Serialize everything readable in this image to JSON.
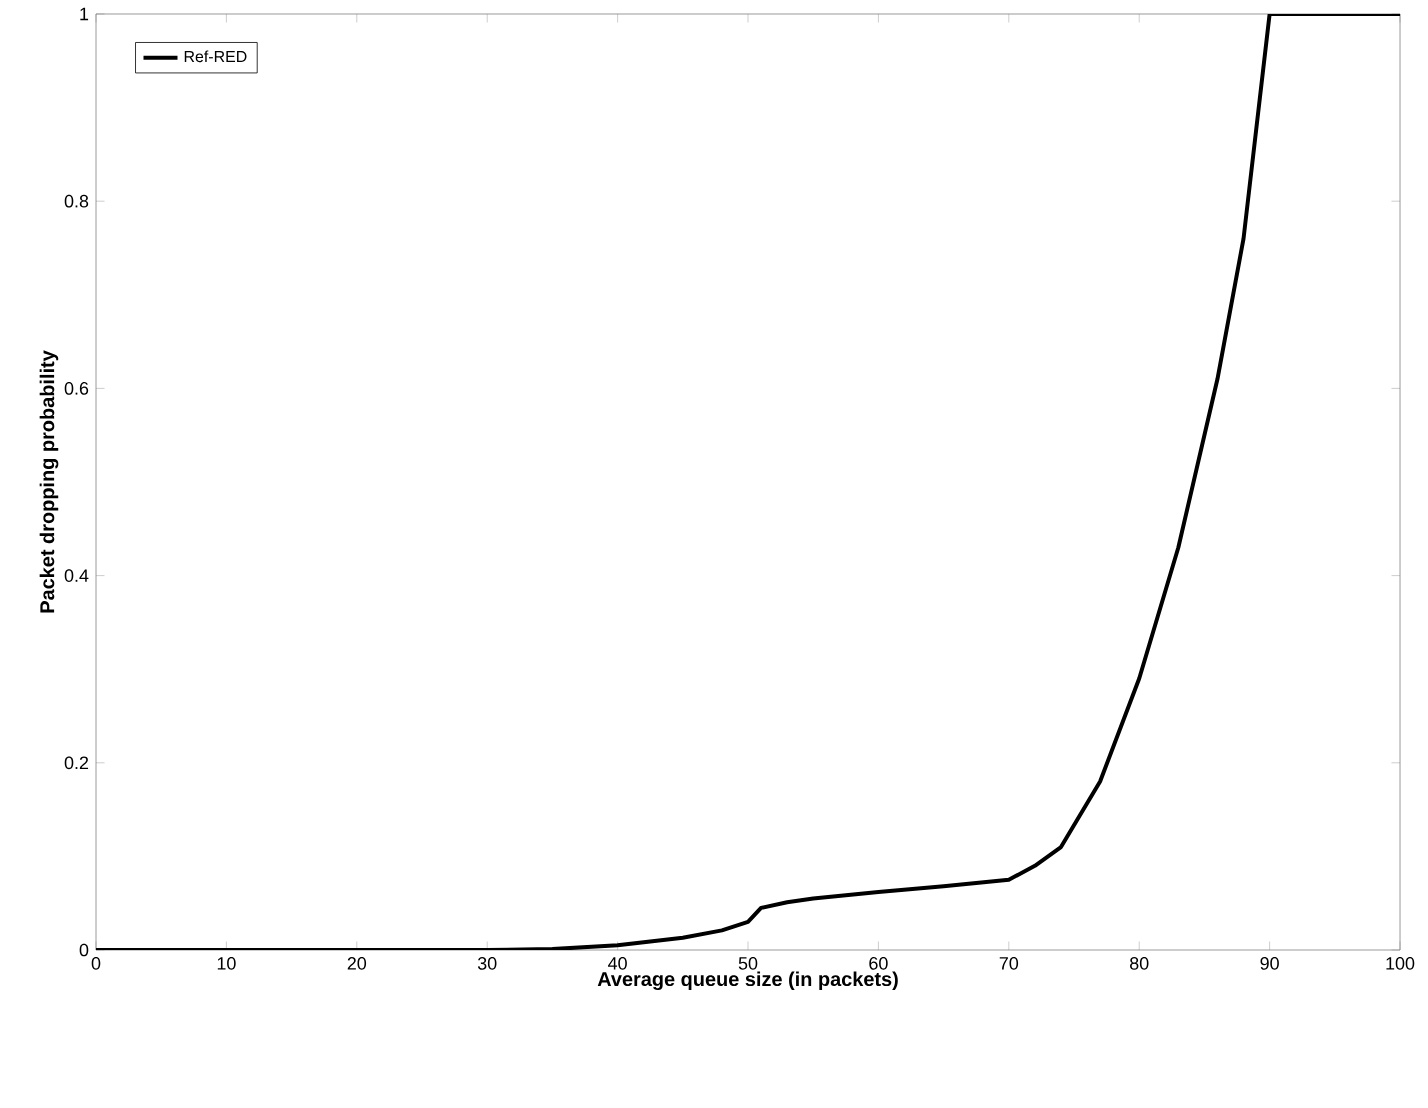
{
  "chart_data": {
    "type": "line",
    "xlabel": "Average queue size (in packets)",
    "ylabel": "Packet dropping probability",
    "xlim": [
      0,
      100
    ],
    "ylim": [
      0,
      1
    ],
    "xticks": [
      0,
      10,
      20,
      30,
      40,
      50,
      60,
      70,
      80,
      90,
      100
    ],
    "yticks": [
      0,
      0.2,
      0.4,
      0.6,
      0.8,
      1
    ],
    "x": [
      0,
      10,
      20,
      30,
      35,
      40,
      45,
      48,
      50,
      51,
      53,
      55,
      60,
      65,
      70,
      72,
      74,
      77,
      80,
      83,
      86,
      88,
      90,
      95,
      100
    ],
    "series": [
      {
        "name": "Ref-RED",
        "color": "#000000",
        "values": [
          0,
          0,
          0,
          0,
          0.001,
          0.005,
          0.013,
          0.021,
          0.03,
          0.045,
          0.051,
          0.055,
          0.062,
          0.068,
          0.075,
          0.09,
          0.11,
          0.18,
          0.29,
          0.43,
          0.61,
          0.76,
          1.0,
          1.0,
          1.0
        ]
      }
    ],
    "legend": "top left",
    "line_style": "solid",
    "marker": "none",
    "grid": false
  }
}
